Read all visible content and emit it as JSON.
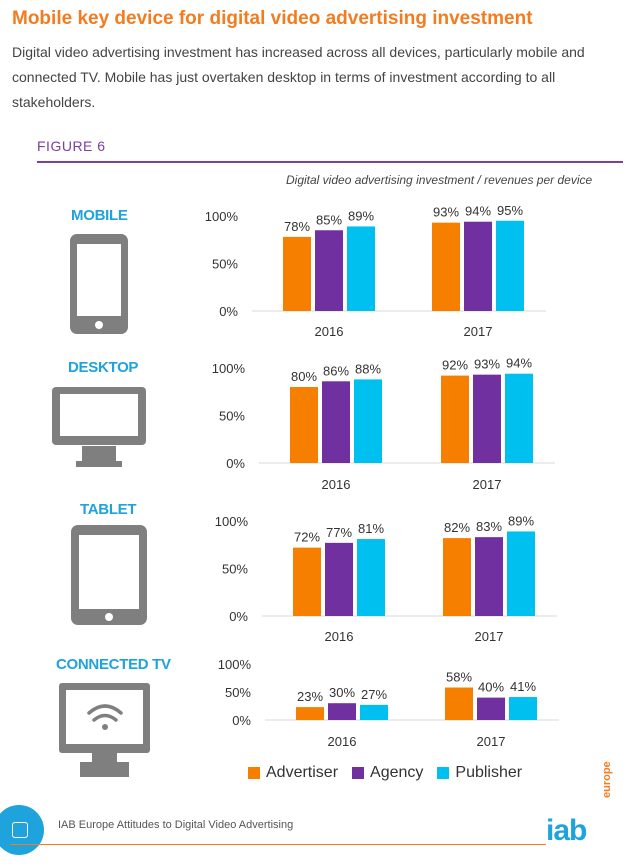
{
  "header": {
    "title": "Mobile key device for digital video advertising investment",
    "intro": "Digital video advertising investment has increased across all devices, particularly mobile and connected TV. Mobile has just overtaken desktop in terms of investment according to all stakeholders.",
    "figure_label": "FIGURE 6"
  },
  "chart_subtitle": "Digital video advertising investment / revenues per device",
  "colors": {
    "Advertiser": "#f77f00",
    "Agency": "#7030a0",
    "Publisher": "#00c0f0",
    "accent": "#f47c20",
    "device_label": "#1ea3dc",
    "icon": "#7f7f7f"
  },
  "legend": [
    "Advertiser",
    "Agency",
    "Publisher"
  ],
  "chart_data": [
    {
      "type": "bar",
      "title": "MOBILE",
      "categories": [
        "2016",
        "2017"
      ],
      "ylim": [
        0,
        100
      ],
      "yticks": [
        "100%",
        "50%",
        "0%"
      ],
      "series": [
        {
          "name": "Advertiser",
          "values": [
            78,
            93
          ]
        },
        {
          "name": "Agency",
          "values": [
            85,
            94
          ]
        },
        {
          "name": "Publisher",
          "values": [
            89,
            95
          ]
        }
      ]
    },
    {
      "type": "bar",
      "title": "DESKTOP",
      "categories": [
        "2016",
        "2017"
      ],
      "ylim": [
        0,
        100
      ],
      "yticks": [
        "100%",
        "50%",
        "0%"
      ],
      "series": [
        {
          "name": "Advertiser",
          "values": [
            80,
            92
          ]
        },
        {
          "name": "Agency",
          "values": [
            86,
            93
          ]
        },
        {
          "name": "Publisher",
          "values": [
            88,
            94
          ]
        }
      ]
    },
    {
      "type": "bar",
      "title": "TABLET",
      "categories": [
        "2016",
        "2017"
      ],
      "ylim": [
        0,
        100
      ],
      "yticks": [
        "100%",
        "50%",
        "0%"
      ],
      "series": [
        {
          "name": "Advertiser",
          "values": [
            72,
            82
          ]
        },
        {
          "name": "Agency",
          "values": [
            77,
            83
          ]
        },
        {
          "name": "Publisher",
          "values": [
            81,
            89
          ]
        }
      ]
    },
    {
      "type": "bar",
      "title": "CONNECTED TV",
      "categories": [
        "2016",
        "2017"
      ],
      "ylim": [
        0,
        100
      ],
      "yticks": [
        "100%",
        "50%",
        "0%"
      ],
      "series": [
        {
          "name": "Advertiser",
          "values": [
            23,
            58
          ]
        },
        {
          "name": "Agency",
          "values": [
            30,
            40
          ]
        },
        {
          "name": "Publisher",
          "values": [
            27,
            41
          ]
        }
      ]
    }
  ],
  "footer": {
    "text": "IAB Europe Attitudes to Digital Video Advertising",
    "logo": "iab",
    "logo_sub": "europe"
  }
}
